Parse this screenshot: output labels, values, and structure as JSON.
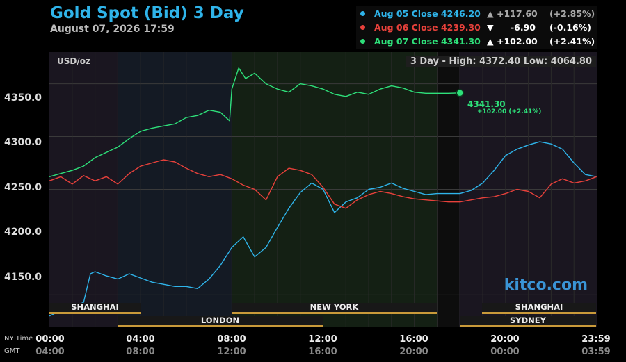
{
  "title": "Gold Spot (Bid) 3 Day",
  "subtitle": "August 07, 2026 17:59",
  "unit": "USD/oz",
  "hilo": "3 Day - High: 4372.40  Low: 4064.80",
  "watermark": "kitco.com",
  "end_label": "4341.30",
  "end_sub": "+102.00 (+2.41%)",
  "legend": [
    {
      "label": "Aug 05 Close 4246.20",
      "arrow": "▲",
      "change": "+117.60",
      "pct": "(+2.85%)",
      "color": "#2fb4ea",
      "changeColor": "#aaaaaa"
    },
    {
      "label": "Aug 06 Close 4239.30",
      "arrow": "▼",
      "change": "-6.90",
      "pct": "(-0.16%)",
      "color": "#e8413b",
      "changeColor": "#ffffff"
    },
    {
      "label": "Aug 07 Close 4341.30",
      "arrow": "▲",
      "change": "+102.00",
      "pct": "(+2.41%)",
      "color": "#2ee07a",
      "changeColor": "#ffffff"
    }
  ],
  "sessions": {
    "shanghai_1": "SHANGHAI",
    "london": "LONDON",
    "new_york": "NEW YORK",
    "shanghai_2": "SHANGHAI",
    "sydney": "SYDNEY"
  },
  "x_axis": {
    "ny_label": "NY Time",
    "gmt_label": "GMT",
    "ny_ticks": [
      "00:00",
      "04:00",
      "08:00",
      "12:00",
      "16:00",
      "20:00",
      "23:59"
    ],
    "gmt_ticks": [
      "04:00",
      "08:00",
      "12:00",
      "16:00",
      "20:00",
      "00:00",
      "03:59"
    ]
  },
  "chart_data": {
    "type": "line",
    "title": "Gold Spot (Bid) 3 Day",
    "ylabel": "USD/oz",
    "xlabel": "NY Time",
    "ylim": [
      4120,
      4380
    ],
    "xlim": [
      0,
      24
    ],
    "y_ticks": [
      "4150.0",
      "4200.0",
      "4250.0",
      "4300.0",
      "4350.0"
    ],
    "y_tick_values": [
      4150,
      4200,
      4250,
      4300,
      4350
    ],
    "grid": true,
    "series": [
      {
        "name": "Aug 05",
        "color": "#2fb4ea",
        "x": [
          0,
          0.5,
          1,
          1.5,
          1.8,
          2,
          2.5,
          3,
          3.5,
          4,
          4.5,
          5,
          5.5,
          6,
          6.5,
          7,
          7.5,
          8,
          8.5,
          9,
          9.5,
          10,
          10.5,
          11,
          11.5,
          12,
          12.5,
          13,
          13.5,
          14,
          14.5,
          15,
          15.5,
          16,
          16.5,
          17,
          17.5,
          18,
          18.5,
          19,
          19.5,
          20,
          20.5,
          21,
          21.5,
          22,
          22.5,
          23,
          23.5,
          23.99
        ],
        "y": [
          4130,
          4135,
          4138,
          4143,
          4170,
          4172,
          4168,
          4165,
          4170,
          4166,
          4162,
          4160,
          4158,
          4158,
          4156,
          4165,
          4178,
          4195,
          4205,
          4186,
          4195,
          4214,
          4232,
          4247,
          4256,
          4250,
          4228,
          4238,
          4242,
          4250,
          4252,
          4256,
          4251,
          4248,
          4245,
          4246,
          4246,
          4246,
          4249,
          4256,
          4268,
          4282,
          4288,
          4292,
          4295,
          4293,
          4288,
          4275,
          4264,
          4262
        ]
      },
      {
        "name": "Aug 06",
        "color": "#e8413b",
        "x": [
          0,
          0.5,
          1,
          1.5,
          2,
          2.5,
          3,
          3.5,
          4,
          4.5,
          5,
          5.5,
          6,
          6.5,
          7,
          7.5,
          8,
          8.5,
          9,
          9.5,
          10,
          10.5,
          11,
          11.5,
          12,
          12.5,
          13,
          13.5,
          14,
          14.5,
          15,
          15.5,
          16,
          16.5,
          17,
          17.5,
          18,
          18.5,
          19,
          19.5,
          20,
          20.5,
          21,
          21.5,
          22,
          22.5,
          23,
          23.5,
          23.99
        ],
        "y": [
          4258,
          4262,
          4255,
          4263,
          4258,
          4262,
          4255,
          4265,
          4272,
          4275,
          4278,
          4276,
          4270,
          4265,
          4262,
          4264,
          4260,
          4254,
          4250,
          4240,
          4262,
          4270,
          4268,
          4264,
          4252,
          4236,
          4232,
          4240,
          4245,
          4248,
          4246,
          4243,
          4241,
          4240,
          4239,
          4238,
          4238,
          4240,
          4242,
          4243,
          4246,
          4250,
          4248,
          4242,
          4255,
          4260,
          4256,
          4258,
          4262
        ]
      },
      {
        "name": "Aug 07",
        "color": "#2ee07a",
        "x": [
          0,
          0.5,
          1,
          1.5,
          2,
          2.5,
          3,
          3.5,
          4,
          4.5,
          5,
          5.5,
          6,
          6.5,
          7,
          7.5,
          7.9,
          8,
          8.3,
          8.6,
          9,
          9.5,
          10,
          10.5,
          11,
          11.5,
          12,
          12.5,
          13,
          13.5,
          14,
          14.5,
          15,
          15.5,
          16,
          16.5,
          17,
          17.5,
          18
        ],
        "y": [
          4262,
          4265,
          4268,
          4272,
          4280,
          4285,
          4290,
          4298,
          4305,
          4308,
          4310,
          4312,
          4318,
          4320,
          4325,
          4323,
          4315,
          4345,
          4365,
          4355,
          4360,
          4350,
          4345,
          4342,
          4350,
          4348,
          4345,
          4340,
          4338,
          4342,
          4340,
          4345,
          4348,
          4346,
          4342,
          4341,
          4341,
          4341,
          4341.3
        ]
      }
    ]
  }
}
